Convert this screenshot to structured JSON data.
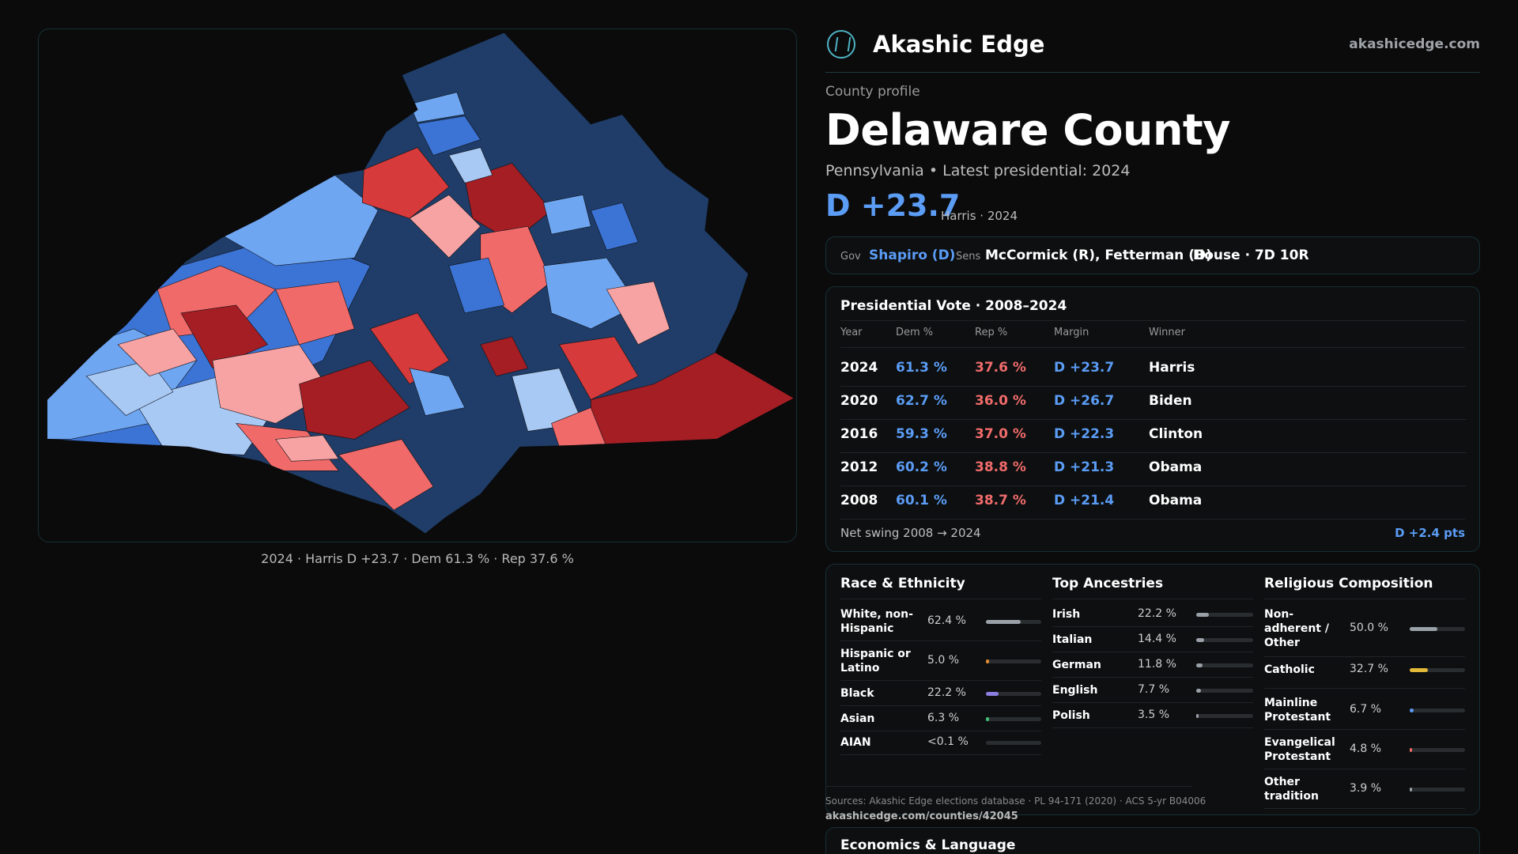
{
  "map": {
    "caption": "2024 · Harris D +23.7 · Dem 61.3 % · Rep 37.6 %",
    "colors": {
      "safe_d": "#1f3d68",
      "likely_d": "#3c74d6",
      "lean_d": "#6fa6f2",
      "tilt_d": "#a9c9f5",
      "tilt_r": "#f7a3a3",
      "lean_r": "#f06a6a",
      "likely_r": "#d63a3a",
      "safe_r": "#a51e24"
    }
  },
  "brand": {
    "name": "Akashic Edge",
    "url": "akashicedge.com",
    "logo_icon": "tree-logo-icon"
  },
  "profile": {
    "kicker": "County profile",
    "title": "Delaware County",
    "subtitle": "Pennsylvania • Latest presidential: 2024",
    "margin": "D +23.7",
    "margin_note": "Harris · 2024"
  },
  "officials": {
    "gov_label": "Gov",
    "gov_value": "Shapiro (D)",
    "sens_label": "Sens",
    "sens_value": "McCormick (R), Fetterman (D)",
    "house": "House · 7D 10R"
  },
  "presidential": {
    "title": "Presidential Vote · 2008–2024",
    "headers": [
      "Year",
      "Dem %",
      "Rep %",
      "Margin",
      "Winner"
    ],
    "rows": [
      {
        "year": "2024",
        "dem": "61.3 %",
        "rep": "37.6 %",
        "margin": "D +23.7",
        "winner": "Harris"
      },
      {
        "year": "2020",
        "dem": "62.7 %",
        "rep": "36.0 %",
        "margin": "D +26.7",
        "winner": "Biden"
      },
      {
        "year": "2016",
        "dem": "59.3 %",
        "rep": "37.0 %",
        "margin": "D +22.3",
        "winner": "Clinton"
      },
      {
        "year": "2012",
        "dem": "60.2 %",
        "rep": "38.8 %",
        "margin": "D +21.3",
        "winner": "Obama"
      },
      {
        "year": "2008",
        "dem": "60.1 %",
        "rep": "38.7 %",
        "margin": "D +21.4",
        "winner": "Obama"
      }
    ],
    "swing_label": "Net swing 2008 → 2024",
    "swing_value": "D +2.4 pts"
  },
  "demographics": {
    "race": {
      "title": "Race & Ethnicity",
      "items": [
        {
          "name": "White, non-Hispanic",
          "pct": "62.4 %",
          "value": 0.624,
          "color": "#9aa0a8"
        },
        {
          "name": "Hispanic or Latino",
          "pct": "5.0 %",
          "value": 0.05,
          "color": "#e08a2e"
        },
        {
          "name": "Black",
          "pct": "22.2 %",
          "value": 0.222,
          "color": "#8a7ee0"
        },
        {
          "name": "Asian",
          "pct": "6.3 %",
          "value": 0.063,
          "color": "#3fbf7a"
        },
        {
          "name": "AIAN",
          "pct": "<0.1 %",
          "value": 0.0,
          "color": "#9aa0a8"
        }
      ]
    },
    "ancestry": {
      "title": "Top Ancestries",
      "items": [
        {
          "name": "Irish",
          "pct": "22.2 %",
          "value": 0.222,
          "color": "#9aa0a8"
        },
        {
          "name": "Italian",
          "pct": "14.4 %",
          "value": 0.144,
          "color": "#9aa0a8"
        },
        {
          "name": "German",
          "pct": "11.8 %",
          "value": 0.118,
          "color": "#9aa0a8"
        },
        {
          "name": "English",
          "pct": "7.7 %",
          "value": 0.077,
          "color": "#9aa0a8"
        },
        {
          "name": "Polish",
          "pct": "3.5 %",
          "value": 0.035,
          "color": "#9aa0a8"
        }
      ]
    },
    "religion": {
      "title": "Religious Composition",
      "items": [
        {
          "name": "Non-adherent / Other",
          "pct": "50.0 %",
          "value": 0.5,
          "color": "#9aa0a8"
        },
        {
          "name": "Catholic",
          "pct": "32.7 %",
          "value": 0.327,
          "color": "#e3b93a"
        },
        {
          "name": "Mainline Protestant",
          "pct": "6.7 %",
          "value": 0.067,
          "color": "#5b9cf5"
        },
        {
          "name": "Evangelical Protestant",
          "pct": "4.8 %",
          "value": 0.048,
          "color": "#f16b6b"
        },
        {
          "name": "Other tradition",
          "pct": "3.9 %",
          "value": 0.039,
          "color": "#9aa0a8"
        }
      ]
    }
  },
  "sources": {
    "text": "Sources: Akashic Edge elections database · PL 94-171 (2020) · ACS 5-yr B04006",
    "url": "akashicedge.com/counties/42045"
  },
  "economics": {
    "title": "Economics & Language"
  }
}
